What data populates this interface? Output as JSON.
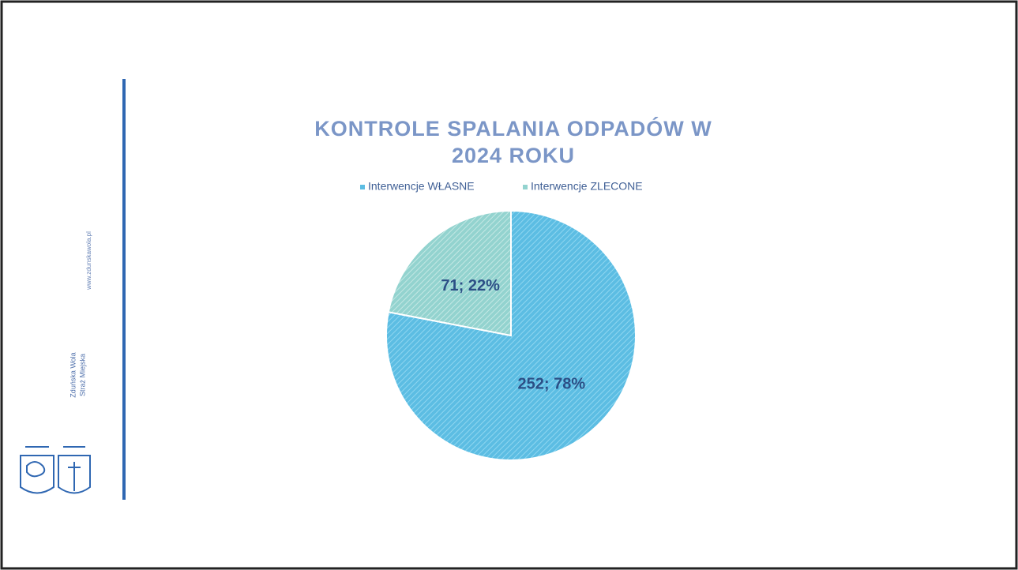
{
  "chart_data": {
    "type": "pie",
    "title": "KONTROLE SPALANIA ODPADÓW W 2024 ROKU",
    "categories": [
      "Interwencje WŁASNE",
      "Interwencje ZLECONE"
    ],
    "values": [
      252,
      71
    ],
    "value_labels": [
      "252; 78%",
      "71; 22%"
    ],
    "colors": [
      "#5cbde3",
      "#93d3cf"
    ],
    "legend": "top"
  },
  "sidebar": {
    "website": "www.zdunskawola.pl",
    "city": "Zduńska Wola",
    "unit": "Straż Miejska"
  }
}
